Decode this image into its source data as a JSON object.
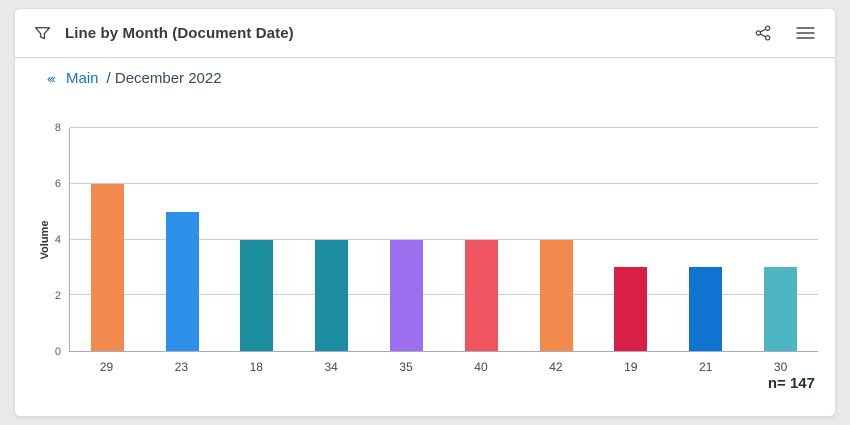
{
  "header": {
    "title": "Line by Month (Document Date)"
  },
  "breadcrumb": {
    "back_icon": "‹‹‹",
    "link": "Main",
    "separator": "/",
    "current": "December 2022"
  },
  "chart_data": {
    "type": "bar",
    "categories": [
      "29",
      "23",
      "18",
      "34",
      "35",
      "40",
      "42",
      "19",
      "21",
      "30"
    ],
    "values": [
      6,
      5,
      4,
      4,
      4,
      4,
      4,
      3,
      3,
      3
    ],
    "bar_colors": [
      "#f28a4d",
      "#2e8fe8",
      "#1c8d9e",
      "#1c8d9e",
      "#9c6fef",
      "#ef5560",
      "#f28a4d",
      "#d91f45",
      "#0f74d0",
      "#4db5c2"
    ],
    "title": "Line by Month (Document Date)",
    "xlabel": "",
    "ylabel": "Volume",
    "yticks": [
      0,
      2,
      4,
      6,
      8
    ],
    "ylim": [
      0,
      8
    ],
    "grid": true,
    "legend": false,
    "sample_note": "n= 147"
  },
  "footer": {
    "n_label": "n= 147"
  },
  "colors": {
    "page_bg": "#e9e9e9",
    "card_bg": "#ffffff",
    "card_border": "#dedede",
    "divider": "#cfcfcf",
    "title_text": "#3a3a3a",
    "link_blue": "#1673c8",
    "breadcrumb_text": "#3b4a5a",
    "grid_line": "#cdcbe0",
    "axis_line": "#a9a7c4",
    "tick_text": "#58595b",
    "icon_gray": "#4a4a4a",
    "n_text": "#23303e"
  }
}
